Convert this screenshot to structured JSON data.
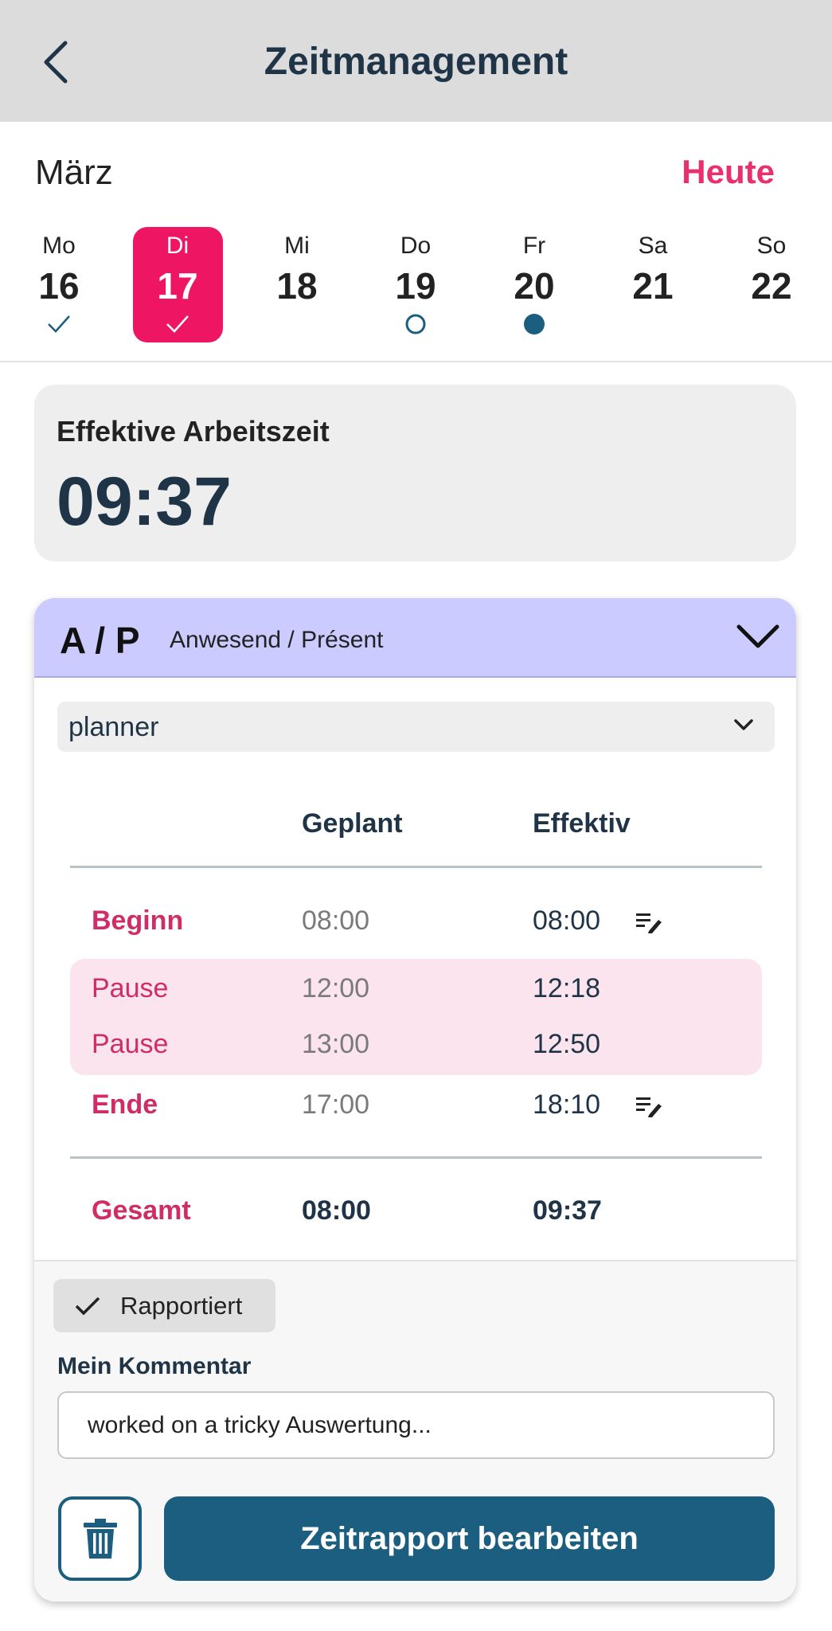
{
  "header": {
    "title": "Zeitmanagement",
    "back_icon": "chevron-left-icon"
  },
  "calendar": {
    "month": "März",
    "today_label": "Heute",
    "selected_color": "#ee1562",
    "days": [
      {
        "name": "Mo",
        "date": "16",
        "marker": "check"
      },
      {
        "name": "Di",
        "date": "17",
        "marker": "check",
        "selected": true
      },
      {
        "name": "Mi",
        "date": "18",
        "marker": "none"
      },
      {
        "name": "Do",
        "date": "19",
        "marker": "circle-outline"
      },
      {
        "name": "Fr",
        "date": "20",
        "marker": "circle-filled"
      },
      {
        "name": "Sa",
        "date": "21",
        "marker": "none"
      },
      {
        "name": "So",
        "date": "22",
        "marker": "none"
      }
    ]
  },
  "summary": {
    "label": "Effektive Arbeitszeit",
    "value": "09:37"
  },
  "absence": {
    "code": "A / P",
    "label": "Anwesend / Présent",
    "header_color": "#cccbff",
    "planner_value": "planner",
    "columns": {
      "planned": "Geplant",
      "effective": "Effektiv"
    },
    "rows": [
      {
        "label": "Beginn",
        "planned": "08:00",
        "effective": "08:00",
        "editable": true
      },
      {
        "label": "Pause",
        "planned": "12:00",
        "effective": "12:18"
      },
      {
        "label": "Pause",
        "planned": "13:00",
        "effective": "12:50"
      },
      {
        "label": "Ende",
        "planned": "17:00",
        "effective": "18:10",
        "editable": true
      }
    ],
    "total": {
      "label": "Gesamt",
      "planned": "08:00",
      "effective": "09:37"
    },
    "status_chip": "Rapportiert",
    "comment_label": "Mein Kommentar",
    "comment_value": "worked on a tricky Auswertung...",
    "primary_button": "Zeitrapport bearbeiten",
    "primary_color": "#1b5e80"
  }
}
